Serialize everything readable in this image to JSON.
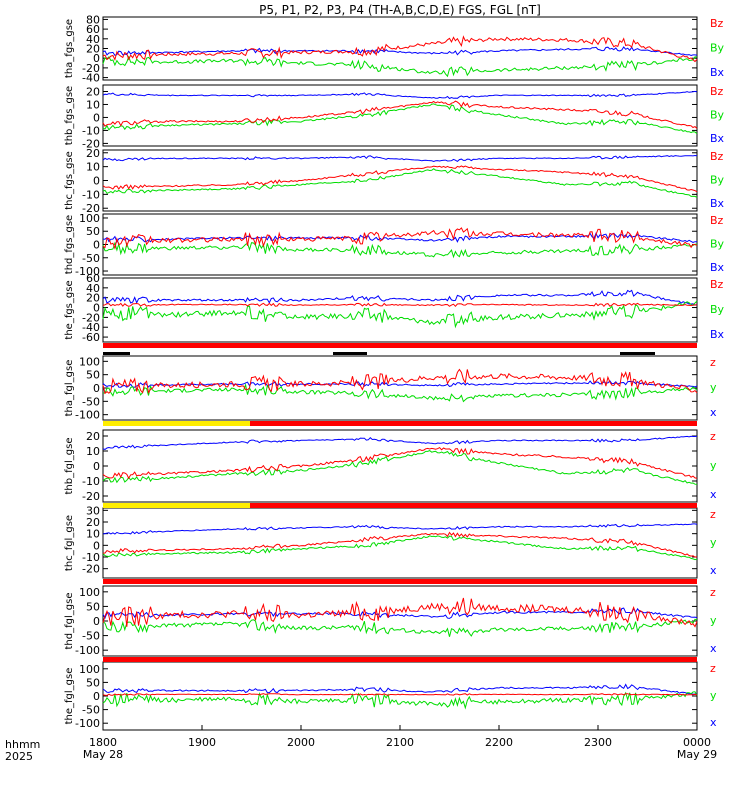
{
  "title": "P5, P1, P2, P3, P4 (TH-A,B,C,D,E) FGS, FGL [nT]",
  "colors": {
    "z": "#ff0000",
    "y": "#00dd00",
    "x": "#0000ff",
    "bar_red": "#ff0000",
    "bar_yellow": "#ffee00",
    "bar_black": "#000000"
  },
  "time_axis": {
    "row_label_1": "hhmm",
    "row_label_2": "2025",
    "ticks": [
      "1800",
      "1900",
      "2000",
      "2100",
      "2200",
      "2300",
      "0000"
    ],
    "start_date": "May 28",
    "end_date": "May 29"
  },
  "chart_data": [
    {
      "type": "line",
      "ylabel": "tha_fgs_gse",
      "ylim": [
        -45,
        85
      ],
      "yticks": [
        "80",
        "60",
        "40",
        "20",
        "0",
        "-20",
        "-40"
      ],
      "legend": [
        "Bz",
        "By",
        "Bx"
      ],
      "series": [
        {
          "name": "Bz",
          "base": [
            5,
            8,
            10,
            12,
            15,
            30,
            40,
            38,
            30,
            -5
          ],
          "noise": 10
        },
        {
          "name": "By",
          "base": [
            -5,
            -8,
            -5,
            -10,
            -15,
            -30,
            -25,
            -20,
            -15,
            0
          ],
          "noise": 10
        },
        {
          "name": "Bx",
          "base": [
            10,
            12,
            15,
            15,
            15,
            10,
            15,
            18,
            20,
            5
          ],
          "noise": 5
        }
      ]
    },
    {
      "type": "line",
      "ylabel": "thb_fgs_gse",
      "ylim": [
        -22,
        25
      ],
      "yticks": [
        "20",
        "10",
        "0",
        "-10",
        "-20"
      ],
      "legend": [
        "Bz",
        "By",
        "Bx"
      ],
      "series": [
        {
          "name": "Bz",
          "base": [
            -5,
            -3,
            -3,
            0,
            5,
            12,
            8,
            6,
            3,
            -8
          ],
          "noise": 2
        },
        {
          "name": "By",
          "base": [
            -8,
            -6,
            -5,
            -3,
            2,
            10,
            2,
            -5,
            -3,
            -12
          ],
          "noise": 2
        },
        {
          "name": "Bx",
          "base": [
            18,
            17,
            17,
            17,
            18,
            15,
            17,
            17,
            17,
            20
          ],
          "noise": 1
        }
      ]
    },
    {
      "type": "line",
      "ylabel": "thc_fgs_gse",
      "ylim": [
        -22,
        22
      ],
      "yticks": [
        "20",
        "10",
        "0",
        "-10",
        "-20"
      ],
      "legend": [
        "Bz",
        "By",
        "Bx"
      ],
      "series": [
        {
          "name": "Bz",
          "base": [
            -5,
            -4,
            -3,
            0,
            5,
            10,
            8,
            6,
            3,
            -8
          ],
          "noise": 1.5
        },
        {
          "name": "By",
          "base": [
            -8,
            -7,
            -6,
            -3,
            0,
            8,
            3,
            -3,
            -2,
            -12
          ],
          "noise": 1.5
        },
        {
          "name": "Bx",
          "base": [
            15,
            16,
            16,
            16,
            17,
            14,
            16,
            16,
            17,
            18
          ],
          "noise": 1
        }
      ]
    },
    {
      "type": "line",
      "ylabel": "thd_fgs_gse",
      "ylim": [
        -115,
        115
      ],
      "yticks": [
        "100",
        "50",
        "0",
        "-50",
        "-100"
      ],
      "legend": [
        "Bz",
        "By",
        "Bx"
      ],
      "series": [
        {
          "name": "Bz",
          "base": [
            10,
            15,
            20,
            20,
            25,
            45,
            40,
            35,
            30,
            -5
          ],
          "noise": 25
        },
        {
          "name": "By",
          "base": [
            -15,
            -15,
            -10,
            -20,
            -20,
            -40,
            -30,
            -25,
            -20,
            0
          ],
          "noise": 20
        },
        {
          "name": "Bx",
          "base": [
            20,
            20,
            25,
            25,
            25,
            15,
            30,
            30,
            35,
            10
          ],
          "noise": 10
        }
      ]
    },
    {
      "type": "line",
      "ylabel": "the_fgs_gse",
      "ylim": [
        -70,
        60
      ],
      "yticks": [
        "60",
        "40",
        "20",
        "0",
        "-20",
        "-40",
        "-60"
      ],
      "legend": [
        "Bz",
        "By",
        "Bx"
      ],
      "series": [
        {
          "name": "Bz",
          "base": [
            5,
            6,
            6,
            5,
            6,
            5,
            6,
            5,
            6,
            5
          ],
          "noise": 3
        },
        {
          "name": "By",
          "base": [
            -10,
            -15,
            -10,
            -20,
            -15,
            -30,
            -20,
            -15,
            -10,
            10
          ],
          "noise": 15
        },
        {
          "name": "Bx",
          "base": [
            15,
            15,
            15,
            15,
            20,
            15,
            25,
            25,
            30,
            5
          ],
          "noise": 6
        }
      ]
    },
    {
      "type": "line",
      "ylabel": "tha_fgl_gse",
      "ylim": [
        -120,
        120
      ],
      "yticks": [
        "100",
        "50",
        "0",
        "-50",
        "-100"
      ],
      "legend": [
        "z",
        "y",
        "x"
      ],
      "series": [
        {
          "name": "z",
          "base": [
            5,
            10,
            15,
            15,
            20,
            40,
            45,
            40,
            30,
            -10
          ],
          "noise": 30
        },
        {
          "name": "y",
          "base": [
            -10,
            -10,
            -5,
            -15,
            -20,
            -40,
            -30,
            -25,
            -20,
            0
          ],
          "noise": 20
        },
        {
          "name": "x",
          "base": [
            10,
            12,
            15,
            15,
            15,
            10,
            15,
            18,
            20,
            5
          ],
          "noise": 8
        }
      ]
    },
    {
      "type": "line",
      "ylabel": "thb_fgl_gse",
      "ylim": [
        -24,
        24
      ],
      "yticks": [
        "20",
        "10",
        "0",
        "-10",
        "-20"
      ],
      "legend": [
        "z",
        "y",
        "x"
      ],
      "series": [
        {
          "name": "z",
          "base": [
            -7,
            -5,
            -3,
            0,
            5,
            12,
            8,
            6,
            3,
            -8
          ],
          "noise": 2
        },
        {
          "name": "y",
          "base": [
            -10,
            -8,
            -5,
            -3,
            2,
            10,
            2,
            -5,
            -3,
            -12
          ],
          "noise": 2
        },
        {
          "name": "x",
          "base": [
            12,
            14,
            16,
            17,
            18,
            15,
            17,
            17,
            17,
            20
          ],
          "noise": 1
        }
      ]
    },
    {
      "type": "line",
      "ylabel": "thc_fgl_gse",
      "ylim": [
        -28,
        32
      ],
      "yticks": [
        "30",
        "20",
        "10",
        "0",
        "-10",
        "-20"
      ],
      "legend": [
        "z",
        "y",
        "x"
      ],
      "series": [
        {
          "name": "z",
          "base": [
            -5,
            -4,
            -3,
            0,
            5,
            10,
            8,
            6,
            3,
            -10
          ],
          "noise": 2
        },
        {
          "name": "y",
          "base": [
            -8,
            -7,
            -6,
            -3,
            0,
            8,
            3,
            -3,
            -2,
            -12
          ],
          "noise": 2
        },
        {
          "name": "x",
          "base": [
            10,
            12,
            14,
            15,
            16,
            14,
            16,
            16,
            17,
            18
          ],
          "noise": 1.2
        }
      ]
    },
    {
      "type": "line",
      "ylabel": "thd_fgl_gse",
      "ylim": [
        -120,
        120
      ],
      "yticks": [
        "100",
        "50",
        "0",
        "-50",
        "-100"
      ],
      "legend": [
        "z",
        "y",
        "x"
      ],
      "series": [
        {
          "name": "z",
          "base": [
            10,
            20,
            25,
            20,
            30,
            50,
            45,
            40,
            30,
            -10
          ],
          "noise": 35
        },
        {
          "name": "y",
          "base": [
            -20,
            -15,
            -10,
            -25,
            -20,
            -40,
            -30,
            -25,
            -20,
            0
          ],
          "noise": 20
        },
        {
          "name": "x",
          "base": [
            20,
            20,
            25,
            25,
            25,
            15,
            30,
            30,
            35,
            10
          ],
          "noise": 10
        }
      ]
    },
    {
      "type": "line",
      "ylabel": "the_fgl_gse",
      "ylim": [
        -125,
        125
      ],
      "yticks": [
        "100",
        "50",
        "0",
        "-50",
        "-100"
      ],
      "legend": [
        "z",
        "y",
        "x"
      ],
      "series": [
        {
          "name": "z",
          "base": [
            5,
            6,
            6,
            5,
            6,
            5,
            6,
            5,
            6,
            5
          ],
          "noise": 3
        },
        {
          "name": "y",
          "base": [
            -10,
            -15,
            -10,
            -20,
            -15,
            -30,
            -20,
            -15,
            -10,
            10
          ],
          "noise": 25
        },
        {
          "name": "x",
          "base": [
            20,
            20,
            20,
            20,
            25,
            15,
            30,
            30,
            35,
            5
          ],
          "noise": 8
        }
      ]
    }
  ]
}
